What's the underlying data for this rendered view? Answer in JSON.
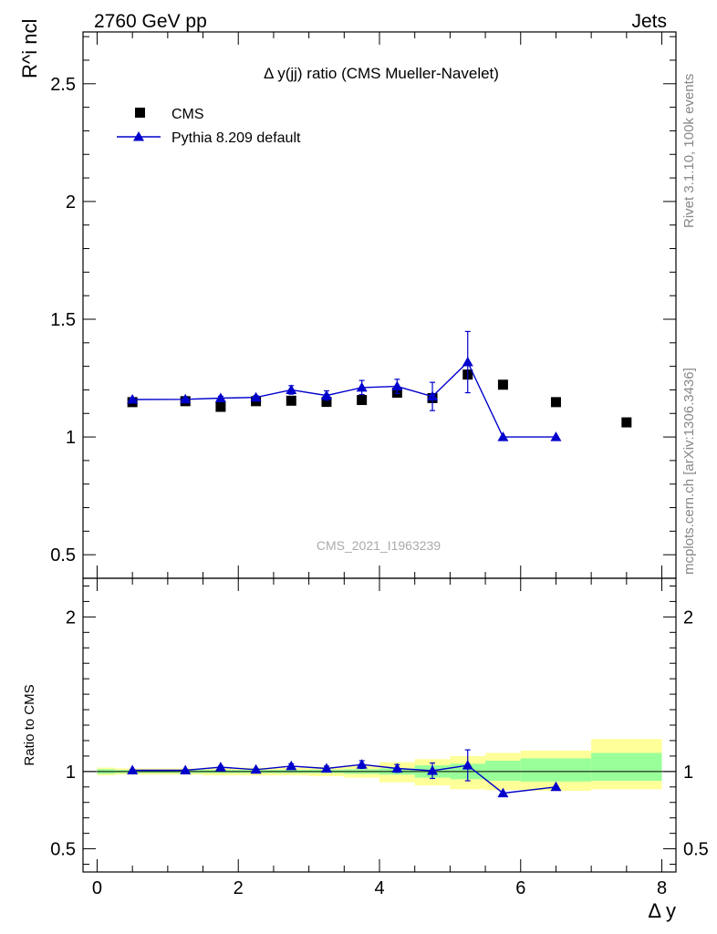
{
  "header": {
    "left": "2760 GeV pp",
    "right": "Jets"
  },
  "side_labels": {
    "rivet": "Rivet 3.1.10,  100k events",
    "source": "mcplots.cern.ch [arXiv:1306.3436]"
  },
  "main_panel": {
    "title": "Δ y(jj) ratio (CMS Mueller-Navelet)",
    "ylabel": "R^i ncl",
    "watermark": "CMS_2021_I1963239"
  },
  "ratio_panel": {
    "ylabel": "Ratio to CMS"
  },
  "xaxis_label": "Δ y",
  "legend": {
    "entries": [
      {
        "label": "CMS",
        "marker": "square"
      },
      {
        "label": "Pythia 8.209 default",
        "marker": "triangle"
      }
    ]
  },
  "colors": {
    "data": "#000000",
    "mc": "#0000cc",
    "band_inner": "#99ff99",
    "band_outer": "#ffff99"
  },
  "chart_data": [
    {
      "type": "scatter",
      "panel": "main",
      "xlim": [
        -0.2,
        8.2
      ],
      "ylim": [
        0.4,
        2.72
      ],
      "yticks": [
        0.5,
        1,
        1.5,
        2,
        2.5
      ],
      "series": [
        {
          "name": "CMS",
          "x": [
            0.5,
            1.25,
            1.75,
            2.25,
            2.75,
            3.25,
            3.75,
            4.25,
            4.75,
            5.25,
            5.75,
            6.5,
            7.5
          ],
          "y": [
            1.148,
            1.152,
            1.128,
            1.152,
            1.154,
            1.149,
            1.157,
            1.188,
            1.165,
            1.265,
            1.222,
            1.148,
            1.062
          ]
        },
        {
          "name": "Pythia 8.209 default",
          "x": [
            0.5,
            1.25,
            1.75,
            2.25,
            2.75,
            3.25,
            3.75,
            4.25,
            4.75,
            5.25,
            5.75,
            6.5
          ],
          "y": [
            1.159,
            1.16,
            1.165,
            1.168,
            1.2,
            1.176,
            1.21,
            1.215,
            1.172,
            1.318,
            1.0,
            1.0
          ],
          "yerr": [
            0.006,
            0.006,
            0.008,
            0.008,
            0.018,
            0.02,
            0.03,
            0.03,
            0.06,
            0.13,
            0.0,
            0.0
          ]
        }
      ]
    },
    {
      "type": "line",
      "panel": "ratio",
      "xlim": [
        -0.2,
        8.2
      ],
      "ylim": [
        0.35,
        2.25
      ],
      "yticks": [
        0.5,
        1,
        2
      ],
      "reference_line": 1,
      "bands": {
        "edges": [
          0,
          0.25,
          1,
          1.5,
          2,
          2.5,
          3,
          3.5,
          4,
          4.5,
          5,
          5.5,
          6,
          7,
          8
        ],
        "inner_low": [
          0.985,
          0.99,
          0.99,
          0.99,
          0.99,
          0.99,
          0.99,
          0.985,
          0.98,
          0.96,
          0.95,
          0.94,
          0.935,
          0.94
        ],
        "inner_high": [
          1.015,
          1.01,
          1.01,
          1.01,
          1.01,
          1.01,
          1.012,
          1.015,
          1.02,
          1.04,
          1.05,
          1.07,
          1.085,
          1.12
        ],
        "outer_low": [
          0.975,
          0.98,
          0.98,
          0.975,
          0.975,
          0.975,
          0.97,
          0.96,
          0.93,
          0.91,
          0.885,
          0.88,
          0.875,
          0.885
        ],
        "outer_high": [
          1.025,
          1.02,
          1.02,
          1.025,
          1.025,
          1.025,
          1.03,
          1.04,
          1.06,
          1.08,
          1.1,
          1.12,
          1.135,
          1.21
        ]
      },
      "series": [
        {
          "name": "Pythia 8.209 default",
          "x": [
            0.5,
            1.25,
            1.75,
            2.25,
            2.75,
            3.25,
            3.75,
            4.25,
            4.75,
            5.25,
            5.75,
            6.5
          ],
          "y": [
            1.008,
            1.008,
            1.028,
            1.012,
            1.035,
            1.02,
            1.045,
            1.02,
            1.005,
            1.04,
            0.86,
            0.9
          ],
          "yerr": [
            0.005,
            0.005,
            0.007,
            0.007,
            0.015,
            0.015,
            0.025,
            0.025,
            0.05,
            0.1,
            0.0,
            0.0
          ]
        }
      ]
    }
  ]
}
